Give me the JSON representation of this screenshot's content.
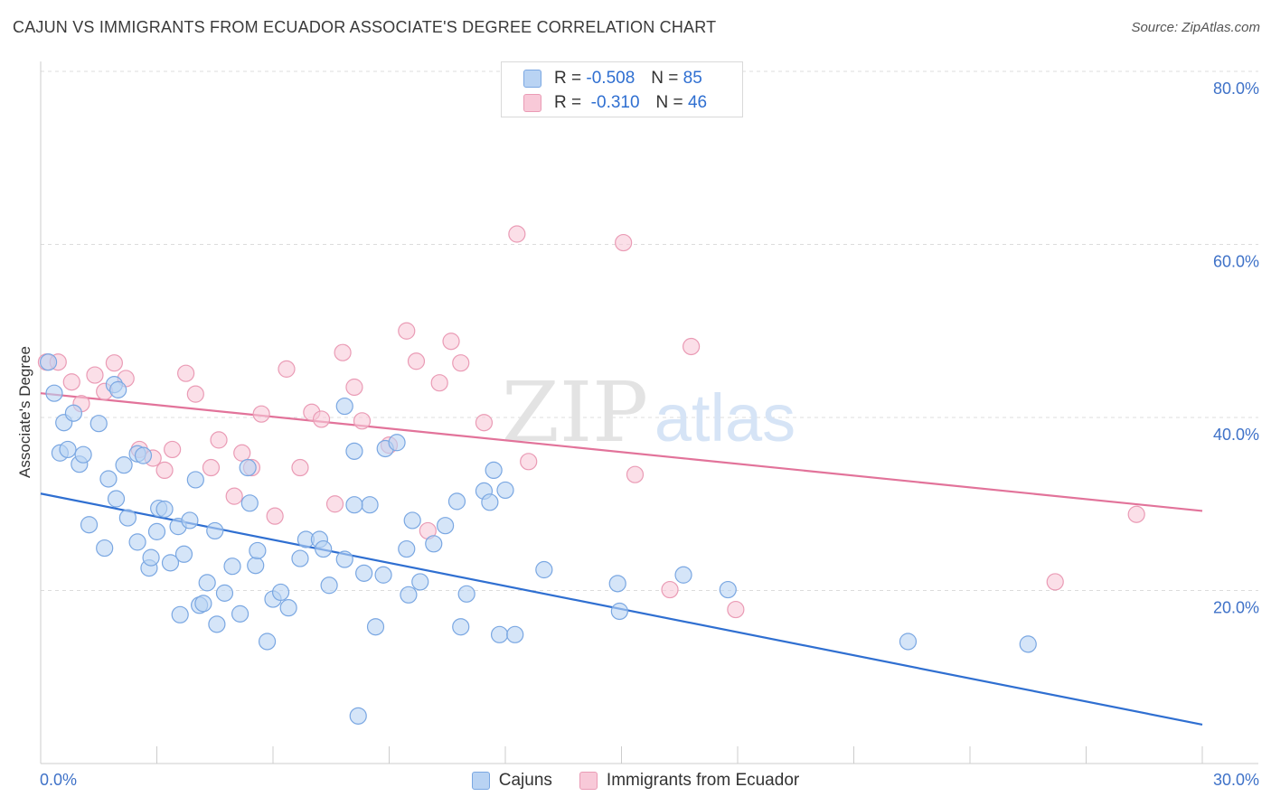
{
  "header": {
    "title": "CAJUN VS IMMIGRANTS FROM ECUADOR ASSOCIATE'S DEGREE CORRELATION CHART",
    "source": "Source: ZipAtlas.com"
  },
  "watermark": {
    "zip": "ZIP",
    "atlas": "atlas"
  },
  "stats_legend": {
    "rows": [
      {
        "r_label": "R =",
        "r_value": "-0.508",
        "n_label": "N =",
        "n_value": "85"
      },
      {
        "r_label": "R =",
        "r_value": "-0.310",
        "n_label": "N =",
        "n_value": "46"
      }
    ]
  },
  "colors": {
    "blue": "#2f6fd1",
    "blue_fill": "#b9d3f3",
    "blue_edge": "#7aa7e2",
    "pink": "#e2739a",
    "pink_fill": "#f8c9d8",
    "pink_edge": "#ea9bb5",
    "grid": "#dcdcdc",
    "tick_label": "#3f72c8"
  },
  "chart_data": {
    "type": "scatter",
    "title": "CAJUN VS IMMIGRANTS FROM ECUADOR ASSOCIATE'S DEGREE CORRELATION CHART",
    "xlabel": "",
    "ylabel": "Associate's Degree",
    "xlim": [
      0,
      30
    ],
    "ylim": [
      0,
      80
    ],
    "x_tick_labels": [
      "0.0%",
      "30.0%"
    ],
    "y_ticks": [
      20,
      40,
      60,
      80
    ],
    "y_tick_labels": [
      "20.0%",
      "40.0%",
      "60.0%",
      "80.0%"
    ],
    "grid": "horizontal dashed",
    "legend_position": "bottom",
    "series": [
      {
        "name": "Cajuns",
        "color": "#2f6fd1",
        "trend": {
          "x": [
            0,
            30
          ],
          "y": [
            31.2,
            4.5
          ]
        },
        "points": [
          [
            0.2,
            46.4
          ],
          [
            0.35,
            42.8
          ],
          [
            0.5,
            35.9
          ],
          [
            0.6,
            39.4
          ],
          [
            0.7,
            36.3
          ],
          [
            0.85,
            40.5
          ],
          [
            1.0,
            34.6
          ],
          [
            1.1,
            35.7
          ],
          [
            1.25,
            27.6
          ],
          [
            1.5,
            39.3
          ],
          [
            1.65,
            24.9
          ],
          [
            1.75,
            32.9
          ],
          [
            1.9,
            43.8
          ],
          [
            1.95,
            30.6
          ],
          [
            2.0,
            43.2
          ],
          [
            2.15,
            34.5
          ],
          [
            2.25,
            28.4
          ],
          [
            2.5,
            35.8
          ],
          [
            2.5,
            25.6
          ],
          [
            2.65,
            35.6
          ],
          [
            2.8,
            22.6
          ],
          [
            2.85,
            23.8
          ],
          [
            3.0,
            26.8
          ],
          [
            3.05,
            29.5
          ],
          [
            3.2,
            29.4
          ],
          [
            3.35,
            23.2
          ],
          [
            3.55,
            27.4
          ],
          [
            3.6,
            17.2
          ],
          [
            3.7,
            24.2
          ],
          [
            3.85,
            28.1
          ],
          [
            4.0,
            32.8
          ],
          [
            4.1,
            18.3
          ],
          [
            4.2,
            18.5
          ],
          [
            4.3,
            20.9
          ],
          [
            4.5,
            26.9
          ],
          [
            4.55,
            16.1
          ],
          [
            4.75,
            19.7
          ],
          [
            4.95,
            22.8
          ],
          [
            5.15,
            17.3
          ],
          [
            5.35,
            34.2
          ],
          [
            5.4,
            30.1
          ],
          [
            5.55,
            22.9
          ],
          [
            5.6,
            24.6
          ],
          [
            5.85,
            14.1
          ],
          [
            6.0,
            19.0
          ],
          [
            6.2,
            19.8
          ],
          [
            6.4,
            18.0
          ],
          [
            6.7,
            23.7
          ],
          [
            6.85,
            25.9
          ],
          [
            7.2,
            25.9
          ],
          [
            7.3,
            24.8
          ],
          [
            7.45,
            20.6
          ],
          [
            7.85,
            23.6
          ],
          [
            7.85,
            41.3
          ],
          [
            8.1,
            36.1
          ],
          [
            8.2,
            5.5
          ],
          [
            8.35,
            22.0
          ],
          [
            8.5,
            29.9
          ],
          [
            8.65,
            15.8
          ],
          [
            8.85,
            21.8
          ],
          [
            8.9,
            36.4
          ],
          [
            9.2,
            37.1
          ],
          [
            9.45,
            24.8
          ],
          [
            9.5,
            19.5
          ],
          [
            9.6,
            28.1
          ],
          [
            9.8,
            21.0
          ],
          [
            10.15,
            25.4
          ],
          [
            10.45,
            27.5
          ],
          [
            10.75,
            30.3
          ],
          [
            10.85,
            15.8
          ],
          [
            11.0,
            19.6
          ],
          [
            11.45,
            31.5
          ],
          [
            11.6,
            30.2
          ],
          [
            11.7,
            33.9
          ],
          [
            11.85,
            14.9
          ],
          [
            12.0,
            31.6
          ],
          [
            12.25,
            14.9
          ],
          [
            13.0,
            22.4
          ],
          [
            14.9,
            20.8
          ],
          [
            14.95,
            17.6
          ],
          [
            16.6,
            21.8
          ],
          [
            17.75,
            20.1
          ],
          [
            22.4,
            14.1
          ],
          [
            25.5,
            13.8
          ],
          [
            8.1,
            29.9
          ]
        ]
      },
      {
        "name": "Immigrants from Ecuador",
        "color": "#e2739a",
        "trend": {
          "x": [
            0,
            30
          ],
          "y": [
            42.8,
            29.2
          ]
        },
        "points": [
          [
            0.15,
            46.4
          ],
          [
            0.45,
            46.4
          ],
          [
            0.8,
            44.1
          ],
          [
            1.05,
            41.6
          ],
          [
            1.4,
            44.9
          ],
          [
            1.65,
            43.0
          ],
          [
            1.9,
            46.3
          ],
          [
            2.2,
            44.5
          ],
          [
            2.55,
            36.3
          ],
          [
            2.9,
            35.3
          ],
          [
            3.2,
            33.9
          ],
          [
            3.4,
            36.3
          ],
          [
            3.75,
            45.1
          ],
          [
            4.0,
            42.7
          ],
          [
            4.4,
            34.2
          ],
          [
            4.6,
            37.4
          ],
          [
            5.0,
            30.9
          ],
          [
            5.2,
            35.9
          ],
          [
            5.45,
            34.2
          ],
          [
            5.7,
            40.4
          ],
          [
            6.05,
            28.6
          ],
          [
            6.35,
            45.6
          ],
          [
            6.7,
            34.2
          ],
          [
            7.0,
            40.6
          ],
          [
            7.25,
            39.8
          ],
          [
            7.6,
            30.0
          ],
          [
            7.8,
            47.5
          ],
          [
            8.1,
            43.5
          ],
          [
            8.3,
            39.6
          ],
          [
            9.0,
            36.8
          ],
          [
            9.45,
            50.0
          ],
          [
            9.7,
            46.5
          ],
          [
            10.0,
            26.9
          ],
          [
            10.3,
            44.0
          ],
          [
            10.6,
            48.8
          ],
          [
            10.85,
            46.3
          ],
          [
            11.45,
            39.4
          ],
          [
            12.3,
            61.2
          ],
          [
            12.6,
            34.9
          ],
          [
            15.05,
            60.2
          ],
          [
            15.35,
            33.4
          ],
          [
            16.25,
            20.1
          ],
          [
            16.8,
            48.2
          ],
          [
            17.95,
            17.8
          ],
          [
            26.2,
            21.0
          ],
          [
            28.3,
            28.8
          ]
        ]
      }
    ]
  }
}
